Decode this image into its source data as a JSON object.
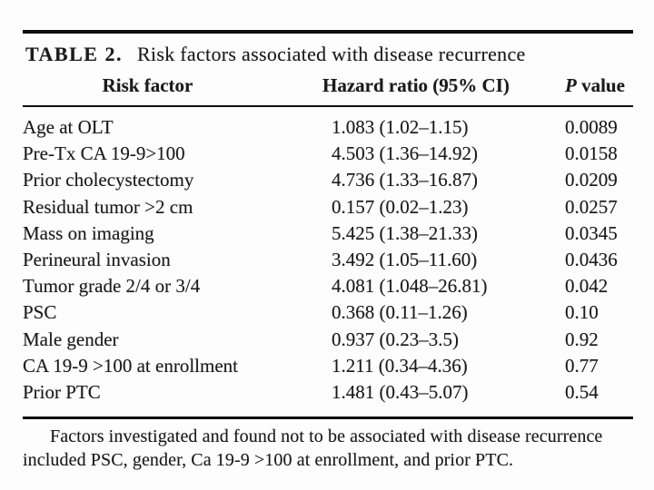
{
  "table": {
    "label": "TABLE 2.",
    "title": "Risk factors associated with disease recurrence",
    "columns": {
      "factor": "Risk factor",
      "hazard": "Hazard ratio (95% CI)",
      "p_italic": "P",
      "p_rest": "value"
    },
    "rows": [
      {
        "factor": "Age at OLT",
        "hr": "1.083 (1.02–1.15)",
        "p": "0.0089"
      },
      {
        "factor": "Pre-Tx CA 19-9>100",
        "hr": "4.503 (1.36–14.92)",
        "p": "0.0158"
      },
      {
        "factor": "Prior cholecystectomy",
        "hr": "4.736 (1.33–16.87)",
        "p": "0.0209"
      },
      {
        "factor": "Residual tumor >2 cm",
        "hr": "0.157 (0.02–1.23)",
        "p": "0.0257"
      },
      {
        "factor": "Mass on imaging",
        "hr": "5.425 (1.38–21.33)",
        "p": "0.0345"
      },
      {
        "factor": "Perineural invasion",
        "hr": "3.492 (1.05–11.60)",
        "p": "0.0436"
      },
      {
        "factor": "Tumor grade 2/4 or 3/4",
        "hr": "4.081 (1.048–26.81)",
        "p": "0.042"
      },
      {
        "factor": "PSC",
        "hr": "0.368 (0.11–1.26)",
        "p": "0.10"
      },
      {
        "factor": "Male gender",
        "hr": "0.937 (0.23–3.5)",
        "p": "0.92"
      },
      {
        "factor": "CA 19-9 >100 at enrollment",
        "hr": "1.211 (0.34–4.36)",
        "p": "0.77"
      },
      {
        "factor": "Prior PTC",
        "hr": "1.481 (0.43–5.07)",
        "p": "0.54"
      }
    ],
    "footnote_lines": [
      "Factors investigated and found not to be associated with disease recurrence",
      "included PSC, gender, Ca 19-9 >100 at enrollment, and prior PTC."
    ]
  },
  "colors": {
    "background": "#fdfdfd",
    "text": "#1b1b1b",
    "rule": "#0e0e0e"
  }
}
